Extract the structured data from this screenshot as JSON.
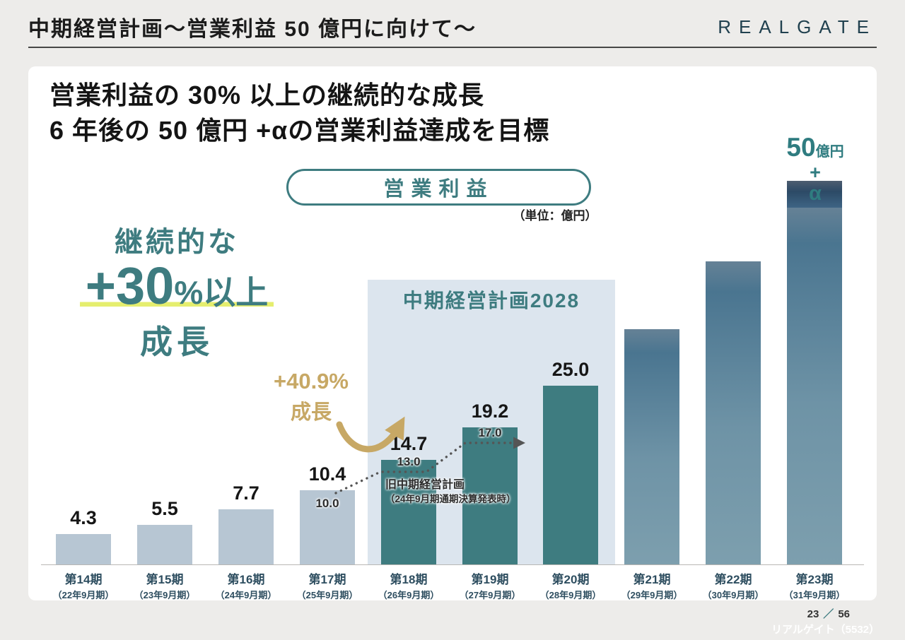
{
  "header": {
    "title": "中期経営計画～営業利益 50 億円に向けて～",
    "logo": "REALGATE"
  },
  "card": {
    "headline_line1": "営業利益の 30% 以上の継続的な成長",
    "headline_line2": "6 年後の 50 億円 +αの営業利益達成を目標",
    "pill_label": "営業利益",
    "unit_note": "（単位：億円）",
    "callout": {
      "line1": "継続的な",
      "big": "+30",
      "suffix": "%以上",
      "line3": "成長"
    },
    "growth_arrow": {
      "line1": "+40.9%",
      "line2": "成長"
    },
    "target": {
      "num": "50",
      "unit": "億円",
      "plus": "+",
      "alpha": "α"
    }
  },
  "chart_data": {
    "type": "bar",
    "title": "営業利益",
    "unit": "億円",
    "categories": [
      "第14期",
      "第15期",
      "第16期",
      "第17期",
      "第18期",
      "第19期",
      "第20期",
      "第21期",
      "第22期",
      "第23期"
    ],
    "category_subs": [
      "（22年9月期）",
      "（23年9月期）",
      "（24年9月期）",
      "（25年9月期）",
      "（26年9月期）",
      "（27年9月期）",
      "（28年9月期）",
      "（29年9月期）",
      "（30年9月期）",
      "（31年9月期）"
    ],
    "values": [
      4.3,
      5.5,
      7.7,
      10.4,
      14.7,
      19.2,
      25.0,
      33.0,
      42.5,
      50.0
    ],
    "value_labels": [
      "4.3",
      "5.5",
      "7.7",
      "10.4",
      "14.7",
      "19.2",
      "25.0",
      "",
      "",
      ""
    ],
    "bar_styles": [
      "light",
      "light",
      "light",
      "light",
      "teal",
      "teal",
      "teal",
      "grad",
      "grad",
      "grad"
    ],
    "alpha_cap": {
      "bar_index": 9,
      "extra_value": 3.8
    },
    "old_plan": {
      "points": [
        {
          "bar_index": 3,
          "value": 10.0,
          "label": "10.0"
        },
        {
          "bar_index": 4,
          "value": 13.0,
          "label": "13.0"
        },
        {
          "bar_index": 5,
          "value": 17.0,
          "label": "17.0"
        }
      ],
      "note_line1": "旧中期経営計画",
      "note_line2": "（24年9月期通期決算発表時）"
    },
    "highlight_box": {
      "label": "中期経営計画2028",
      "from_bar": 4,
      "to_bar": 6
    },
    "ylim": [
      0,
      55
    ],
    "legend": null,
    "grid": false,
    "colors": {
      "teal": "#3E7C80",
      "light_bar": "#B7C6D3",
      "grad_top": "#4A7590",
      "grad_bottom": "#7D9FAE",
      "alpha_cap": "#2C4A66",
      "highlight_box_bg": "#DCE5EE",
      "accent_yellow": "#E5EE6E",
      "gold": "#C7A865",
      "axis_label": "#2E4E60"
    }
  },
  "footer": {
    "page": "23",
    "separator": "／",
    "total": "56",
    "company": "リアルゲイト（5532）"
  }
}
